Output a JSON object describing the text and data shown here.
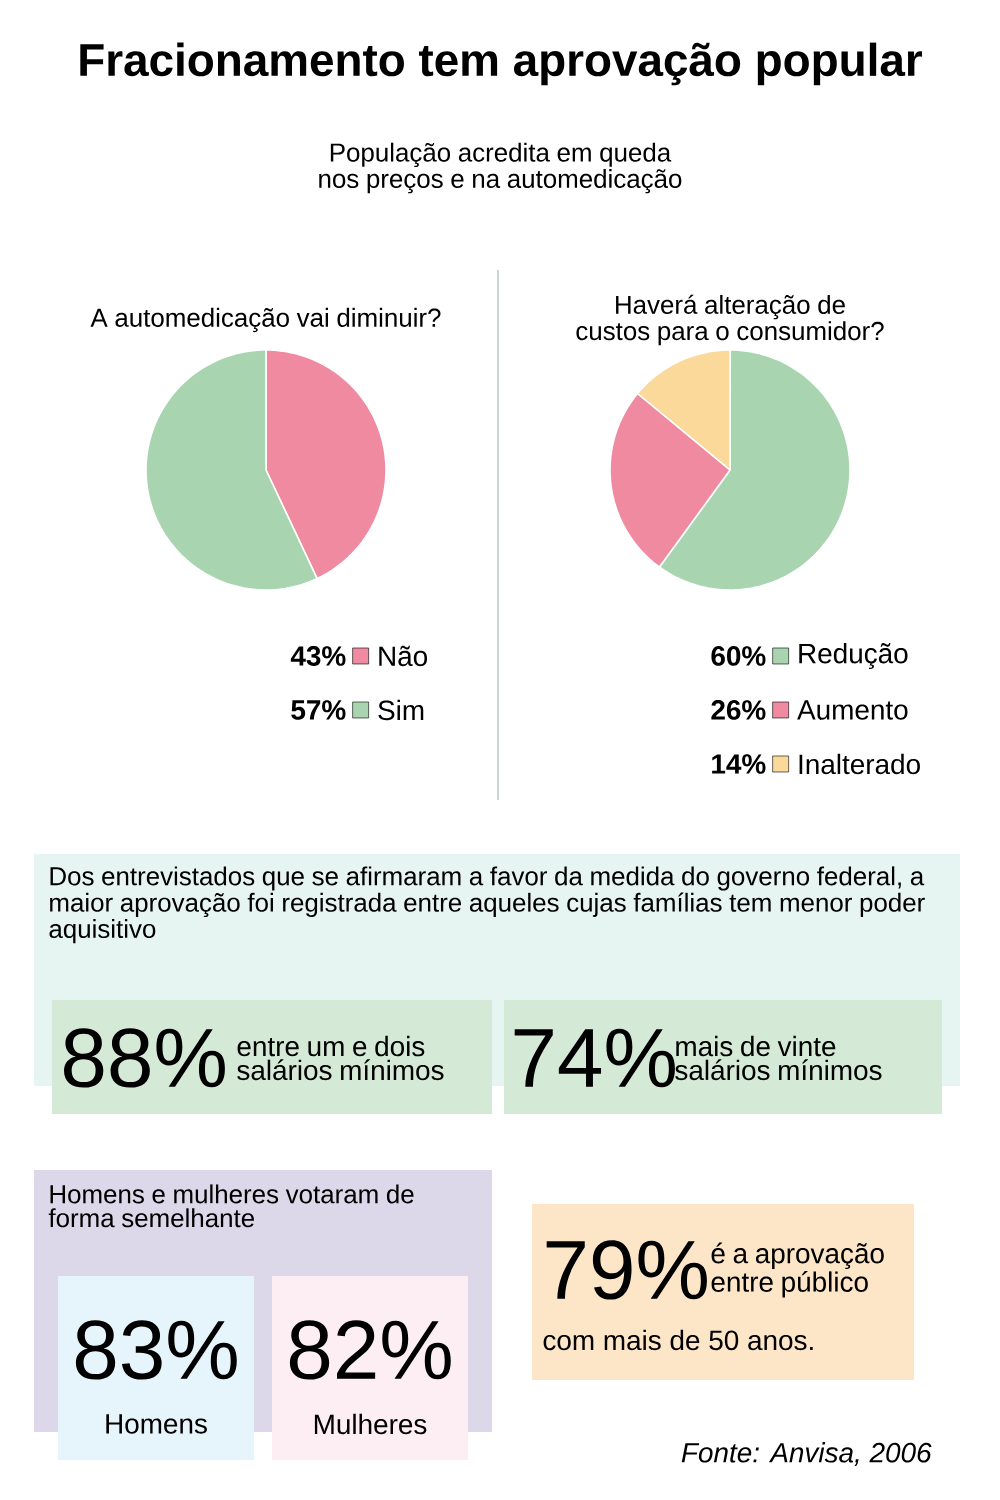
{
  "chart_data": [
    {
      "type": "other",
      "title": "Fracionamento tem aprovação popular",
      "subtitle": "População acredita em  queda nos preços e na automedicação"
    },
    {
      "type": "pie",
      "title": "A automedicação vai diminuir?",
      "categories": [
        "Não",
        "Sim"
      ],
      "values": [
        43,
        57
      ],
      "colors": [
        "#ef8aa0",
        "#a8d5b0"
      ],
      "legend": "bottom",
      "value_labels": [
        "43%",
        "57%"
      ]
    },
    {
      "type": "pie",
      "title": "Haverá alteração de custos para o consumidor?",
      "categories": [
        "Redução",
        "Aumento",
        "Inalterado"
      ],
      "values": [
        60,
        26,
        14
      ],
      "colors": [
        "#a8d5b0",
        "#ef8aa0",
        "#fbd99a"
      ],
      "legend": "bottom",
      "value_labels": [
        "60%",
        "26%",
        "14%"
      ]
    },
    {
      "type": "other",
      "annotations": [
        "Dos entrevistados que se afirmaram a favor da medida do governo federal, a maior aprovação foi registrada entre aqueles cujas famílias tem menor poder aquisitivo",
        "88%",
        "entre um e dois salários mínimos",
        "74%",
        "mais de vinte salários mínimos",
        "Homens e mulheres votaram de forma semelhante",
        "83%",
        "Homens",
        "82%",
        "Mulheres",
        "79%",
        "é a aprovação entre público",
        "com mais de 50 anos.",
        "Fonte: Anvisa, 2006"
      ]
    }
  ]
}
